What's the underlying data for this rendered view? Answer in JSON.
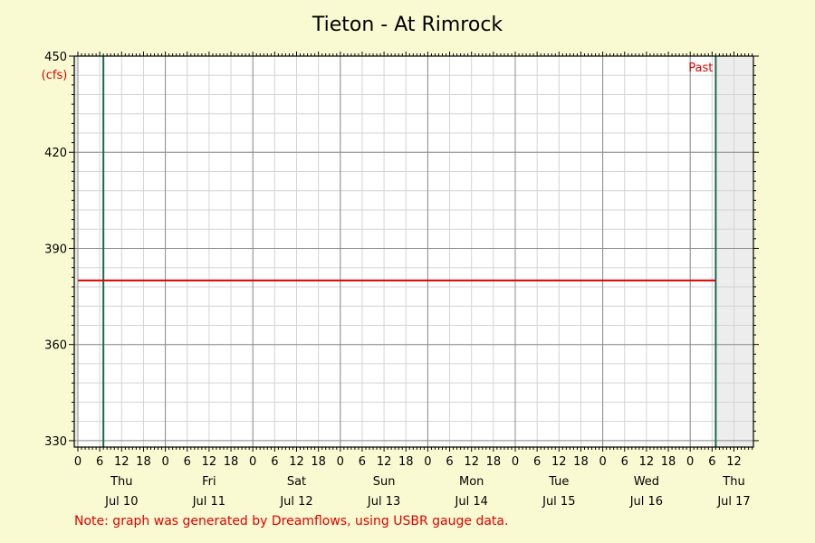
{
  "chart_data": {
    "type": "line",
    "title": "Tieton - At Rimrock",
    "ylabel": "(cfs)",
    "ylim": [
      328,
      450
    ],
    "yticks": [
      330,
      360,
      390,
      420,
      450
    ],
    "x_day_labels": [
      {
        "weekday": "Thu",
        "date": "Jul 10"
      },
      {
        "weekday": "Fri",
        "date": "Jul 11"
      },
      {
        "weekday": "Sat",
        "date": "Jul 12"
      },
      {
        "weekday": "Sun",
        "date": "Jul 13"
      },
      {
        "weekday": "Mon",
        "date": "Jul 14"
      },
      {
        "weekday": "Tue",
        "date": "Jul 15"
      },
      {
        "weekday": "Wed",
        "date": "Jul 16"
      },
      {
        "weekday": "Thu",
        "date": "Jul 17"
      }
    ],
    "x_hour_ticks": [
      "0",
      "6",
      "12",
      "18"
    ],
    "x_range": [
      "Jul 10 00:00",
      "Jul 17 14:00"
    ],
    "series": [
      {
        "color": "#e00000",
        "x": [
          "Jul 10 00:00",
          "Jul 17 07:00"
        ],
        "y": [
          380,
          380
        ]
      }
    ],
    "markers": [
      {
        "at": "Jul 10 07:00",
        "color": "#1a6b4e",
        "label": ""
      },
      {
        "at": "Jul 17 07:00",
        "color": "#1a6b4e",
        "label": "Past"
      }
    ],
    "shaded_regions": [
      {
        "from": "Jul 10 00:00",
        "to": "Jul 10 00:00"
      },
      {
        "from": "Jul 17 07:00",
        "to": "Jul 17 14:00"
      }
    ],
    "grid": true,
    "note": "Note: graph was generated by Dreamflows, using USBR gauge data."
  },
  "colors": {
    "background": "#fafad2",
    "plot_bg": "#ffffff",
    "shade": "#ededed",
    "series": "#e00000",
    "marker": "#1a6b4e"
  }
}
